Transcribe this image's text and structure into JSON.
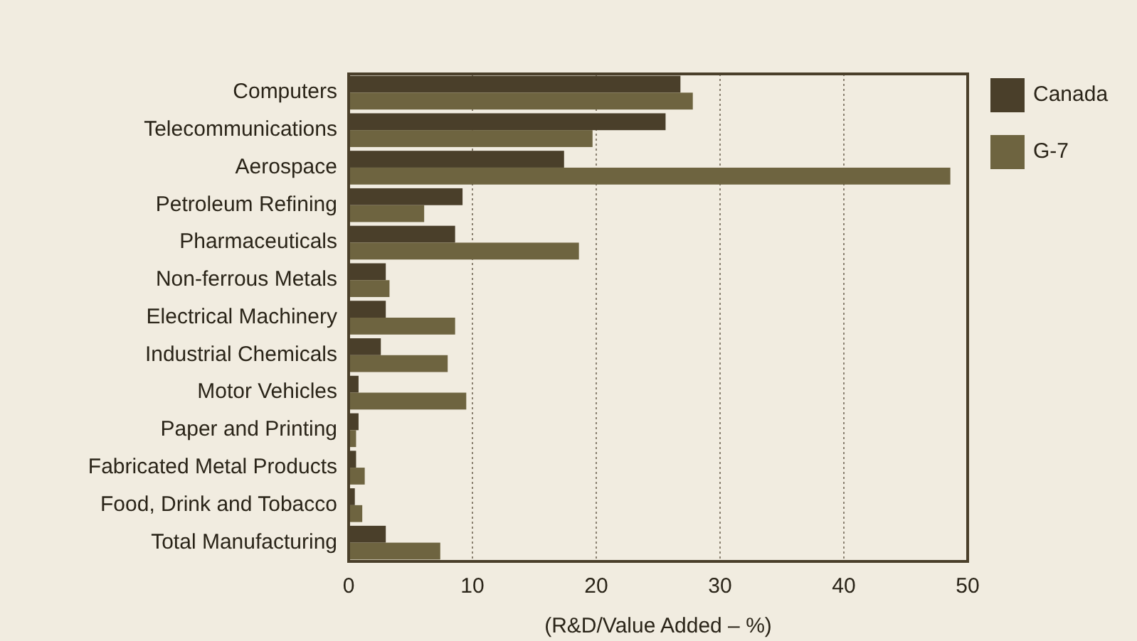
{
  "chart_data": {
    "type": "bar",
    "orientation": "horizontal",
    "xlabel": "(R&D/Value Added – %)",
    "categories": [
      "Computers",
      "Telecommunications",
      "Aerospace",
      "Petroleum Refining",
      "Pharmaceuticals",
      "Non-ferrous Metals",
      "Electrical Machinery",
      "Industrial Chemicals",
      "Motor Vehicles",
      "Paper and Printing",
      "Fabricated Metal Products",
      "Food, Drink and Tobacco",
      "Total Manufacturing"
    ],
    "series": [
      {
        "name": "Canada",
        "color": "#4a3f2a",
        "values": [
          26.8,
          25.6,
          17.4,
          9.2,
          8.6,
          3.0,
          3.0,
          2.6,
          0.8,
          0.8,
          0.6,
          0.5,
          3.0
        ]
      },
      {
        "name": "G-7",
        "color": "#6e6440",
        "values": [
          27.8,
          19.7,
          48.6,
          6.1,
          18.6,
          3.3,
          8.6,
          8.0,
          9.5,
          0.6,
          1.3,
          1.1,
          7.4
        ]
      }
    ],
    "xlim": [
      0,
      50
    ],
    "xticks": [
      0,
      10,
      20,
      30,
      40,
      50
    ],
    "grid": "x",
    "legend": "top right",
    "line_style": "dotted"
  }
}
